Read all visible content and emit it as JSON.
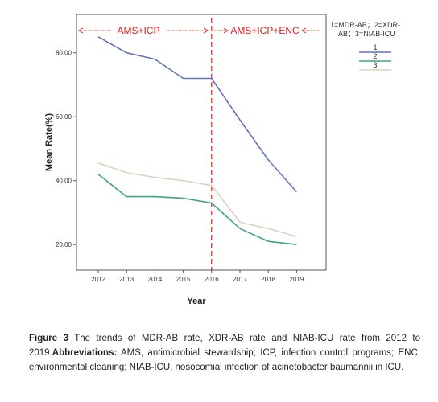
{
  "chart_data": {
    "type": "line",
    "title": "",
    "xlabel": "Year",
    "ylabel": "Mean Rate(%)",
    "x": [
      "2012",
      "2013",
      "2014",
      "2015",
      "2016",
      "2017",
      "2018",
      "2019"
    ],
    "yticks": [
      "20.00",
      "40.00",
      "60.00",
      "80.00"
    ],
    "ylim": [
      12,
      92
    ],
    "grid": false,
    "legend_placement": "top-right",
    "legend_title": "1=MDR-AB；2=XDR-AB；3=NIAB-ICU",
    "series": [
      {
        "name": "1",
        "color": "#6274b8",
        "values": [
          85.0,
          80.0,
          78.0,
          72.0,
          72.0,
          59.0,
          46.5,
          36.5
        ]
      },
      {
        "name": "2",
        "color": "#3ea77a",
        "values": [
          42.0,
          35.0,
          35.0,
          34.5,
          33.0,
          25.0,
          21.0,
          20.0
        ]
      },
      {
        "name": "3",
        "color": "#e0d2bc",
        "values": [
          45.5,
          42.5,
          41.0,
          40.0,
          38.5,
          27.0,
          25.0,
          22.5
        ]
      }
    ],
    "vline": {
      "x": "2016",
      "color": "#d92020",
      "style": "dashed"
    },
    "annotations": [
      {
        "text": "AMS+ICP",
        "color": "#d92020"
      },
      {
        "text": "AMS+ICP+ENC",
        "color": "#d92020"
      }
    ]
  },
  "caption": {
    "label": "Figure 3",
    "text1": " The trends of MDR-AB rate, XDR-AB rate and NIAB-ICU rate from 2012 to 2019.",
    "abbrev_label": "Abbreviations:",
    "text2": " AMS, antimicrobial stewardship; ICP, infection control programs; ENC, environmental cleaning; NIAB-ICU, nosocomial infection of acinetobacter baumannii in ICU."
  }
}
